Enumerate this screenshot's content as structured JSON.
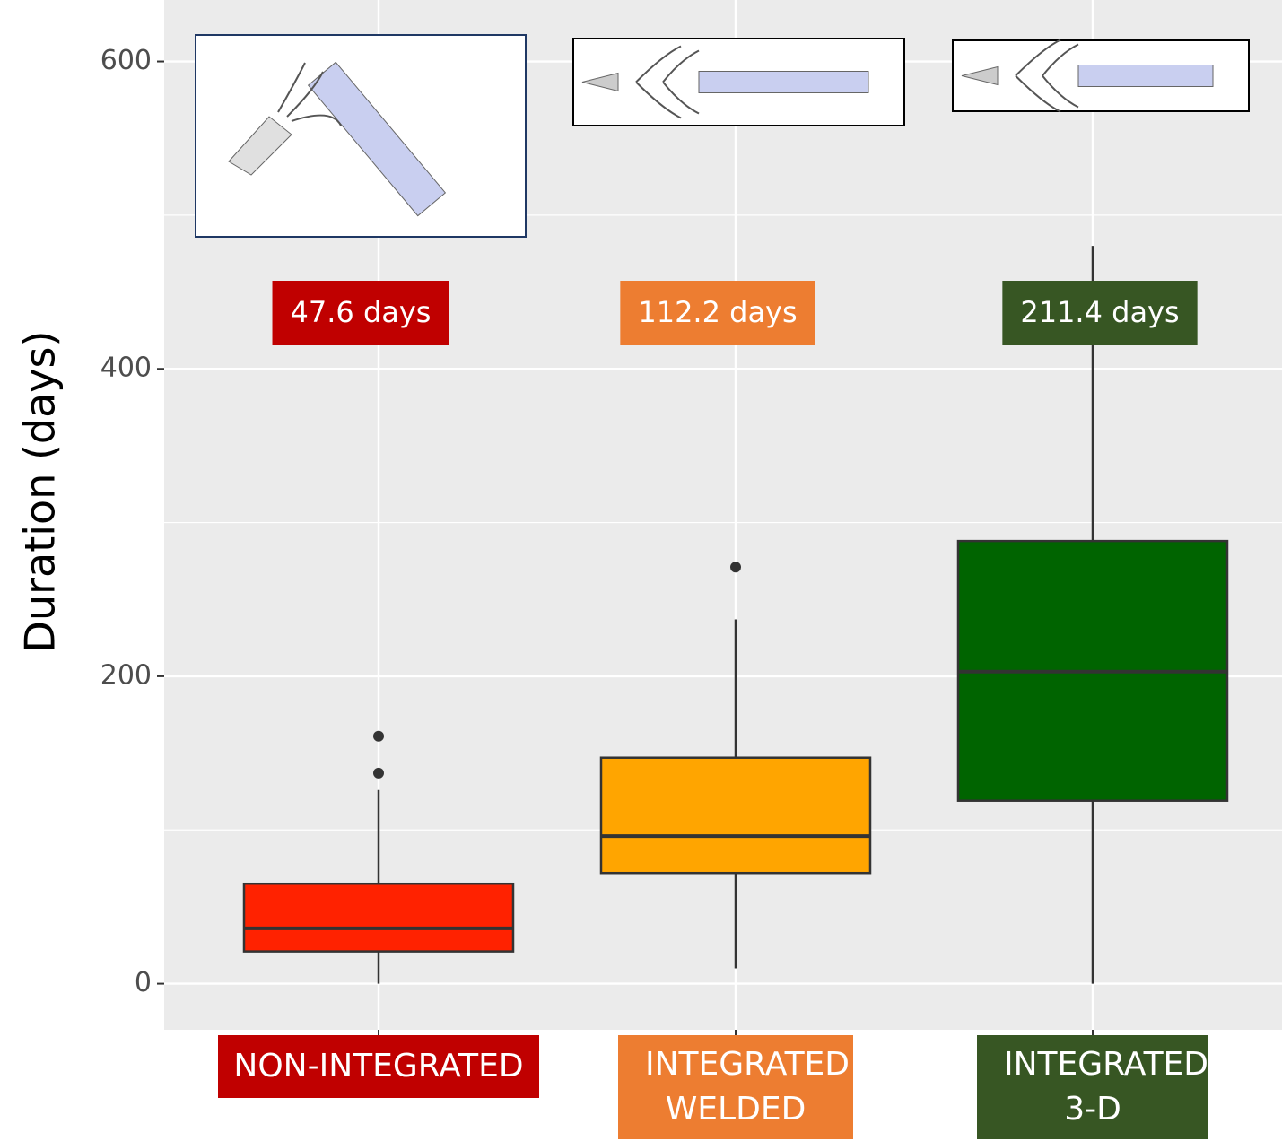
{
  "chart_data": {
    "type": "box",
    "y_label": "Duration (days)",
    "categories": [
      "NON-INTEGRATED",
      "INTEGRATED WELDED",
      "INTEGRATED 3-D"
    ],
    "colors": [
      "#ff2200",
      "#ffa500",
      "#006400"
    ],
    "label_colors": [
      "#c00000",
      "#ed7d31",
      "#375623"
    ],
    "boxes": [
      {
        "whisker_low": 0,
        "q1": 21,
        "median": 36,
        "q3": 65,
        "whisker_high": 126,
        "outliers": [
          137,
          161
        ]
      },
      {
        "whisker_low": 10,
        "q1": 72,
        "median": 96,
        "q3": 147,
        "whisker_high": 237,
        "outliers": [
          271
        ]
      },
      {
        "whisker_low": 0,
        "q1": 119,
        "median": 203,
        "q3": 288,
        "whisker_high": 480,
        "outliers": []
      }
    ],
    "annotations": [
      "47.6 days",
      "112.2 days",
      "211.4 days"
    ],
    "ylim": [
      -30,
      640
    ],
    "yticks": [
      0,
      200,
      400,
      600
    ],
    "minor_yticks": [
      100,
      300,
      500
    ],
    "grid": true
  }
}
